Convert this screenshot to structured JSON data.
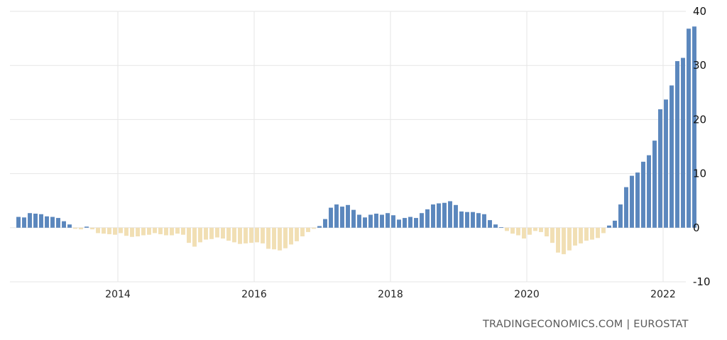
{
  "source": "TRADINGECONOMICS.COM | EUROSTAT",
  "colors": {
    "positive": "#5b87bd",
    "negative": "#f1dfb4",
    "grid": "#e6e6e6",
    "baseline": "#1f3d66"
  },
  "chart_data": {
    "type": "bar",
    "title": "",
    "xlabel": "",
    "ylabel": "",
    "ylim": [
      -10,
      40
    ],
    "xlim": [
      "2012-06",
      "2022-05"
    ],
    "y_ticks": [
      "40",
      "30",
      "20",
      "10",
      "0",
      "-10"
    ],
    "x_ticks": [
      "2014",
      "2016",
      "2018",
      "2020",
      "2022"
    ],
    "grid": true,
    "legend": "none",
    "frequency": "monthly",
    "series": [
      {
        "start": "2012-07",
        "values": [
          2.0,
          1.9,
          2.7,
          2.6,
          2.5,
          2.1,
          2.0,
          1.8,
          1.2,
          0.6,
          -0.2,
          -0.3,
          0.2,
          -0.3,
          -1.0,
          -1.1,
          -1.2,
          -1.3,
          -1.0,
          -1.5,
          -1.7,
          -1.6,
          -1.4,
          -1.3,
          -1.0,
          -1.2,
          -1.4,
          -1.4,
          -1.1,
          -1.3,
          -2.8,
          -3.5,
          -2.7,
          -2.2,
          -2.1,
          -1.8,
          -2.0,
          -2.4,
          -2.7,
          -3.0,
          -2.9,
          -2.8,
          -2.7,
          -2.9,
          -3.9,
          -4.0,
          -4.2,
          -3.8,
          -3.1,
          -2.5,
          -1.6,
          -0.8,
          -0.2,
          0.3,
          1.6,
          3.7,
          4.3,
          3.9,
          4.2,
          3.3,
          2.4,
          1.9,
          2.4,
          2.6,
          2.4,
          2.7,
          2.3,
          1.5,
          1.8,
          2.0,
          1.8,
          2.7,
          3.4,
          4.3,
          4.5,
          4.6,
          4.9,
          4.2,
          3.0,
          2.9,
          2.9,
          2.7,
          2.5,
          1.4,
          0.6,
          0.1,
          -0.6,
          -1.1,
          -1.4,
          -2.0,
          -1.3,
          -0.6,
          -0.8,
          -1.6,
          -2.8,
          -4.6,
          -4.9,
          -4.2,
          -3.3,
          -2.9,
          -2.4,
          -2.2,
          -1.9,
          -1.0,
          0.4,
          1.3,
          4.3,
          7.5,
          9.6,
          10.2,
          12.2,
          13.4,
          16.1,
          21.9,
          23.7,
          26.3,
          30.8,
          31.4,
          36.8,
          37.2
        ]
      }
    ]
  }
}
